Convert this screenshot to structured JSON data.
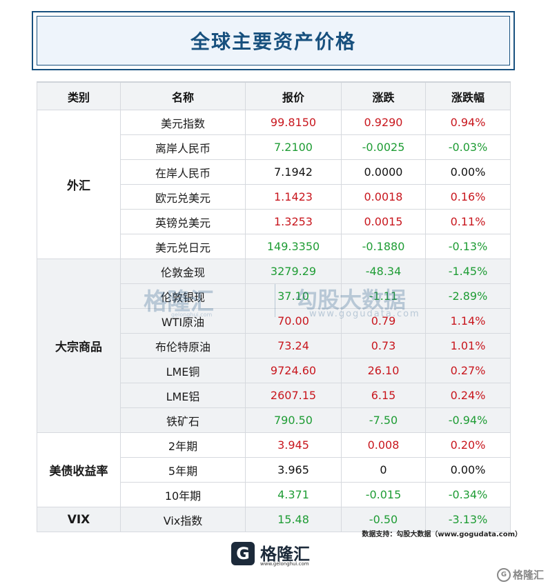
{
  "title": "全球主要资产价格",
  "headers": [
    "类别",
    "名称",
    "报价",
    "涨跌",
    "涨跌幅"
  ],
  "colors": {
    "up": "#c8161d",
    "down": "#1e9c34",
    "flat": "#111111",
    "brand": "#17507e"
  },
  "groups": [
    {
      "category": "外汇",
      "rows": [
        {
          "name": "美元指数",
          "price": "99.8150",
          "change": "0.9290",
          "pct": "0.94%",
          "dir": "up"
        },
        {
          "name": "离岸人民币",
          "price": "7.2100",
          "change": "-0.0025",
          "pct": "-0.03%",
          "dir": "down"
        },
        {
          "name": "在岸人民币",
          "price": "7.1942",
          "change": "0.0000",
          "pct": "0.00%",
          "dir": "flat"
        },
        {
          "name": "欧元兑美元",
          "price": "1.1423",
          "change": "0.0018",
          "pct": "0.16%",
          "dir": "up"
        },
        {
          "name": "英镑兑美元",
          "price": "1.3253",
          "change": "0.0015",
          "pct": "0.11%",
          "dir": "up"
        },
        {
          "name": "美元兑日元",
          "price": "149.3350",
          "change": "-0.1880",
          "pct": "-0.13%",
          "dir": "down"
        }
      ]
    },
    {
      "category": "大宗商品",
      "rows": [
        {
          "name": "伦敦金现",
          "price": "3279.29",
          "change": "-48.34",
          "pct": "-1.45%",
          "dir": "down"
        },
        {
          "name": "伦敦银现",
          "price": "37.10",
          "change": "-1.11",
          "pct": "-2.89%",
          "dir": "down"
        },
        {
          "name": "WTI原油",
          "price": "70.00",
          "change": "0.79",
          "pct": "1.14%",
          "dir": "up"
        },
        {
          "name": "布伦特原油",
          "price": "73.24",
          "change": "0.73",
          "pct": "1.01%",
          "dir": "up"
        },
        {
          "name": "LME铜",
          "price": "9724.60",
          "change": "26.10",
          "pct": "0.27%",
          "dir": "up"
        },
        {
          "name": "LME铝",
          "price": "2607.15",
          "change": "6.15",
          "pct": "0.24%",
          "dir": "up"
        },
        {
          "name": "铁矿石",
          "price": "790.50",
          "change": "-7.50",
          "pct": "-0.94%",
          "dir": "down"
        }
      ]
    },
    {
      "category": "美债收益率",
      "rows": [
        {
          "name": "2年期",
          "price": "3.945",
          "change": "0.008",
          "pct": "0.20%",
          "dir": "up"
        },
        {
          "name": "5年期",
          "price": "3.965",
          "change": "0",
          "pct": "0.00%",
          "dir": "flat"
        },
        {
          "name": "10年期",
          "price": "4.371",
          "change": "-0.015",
          "pct": "-0.34%",
          "dir": "down"
        }
      ]
    },
    {
      "category": "VIX",
      "rows": [
        {
          "name": "Vix指数",
          "price": "15.48",
          "change": "-0.50",
          "pct": "-3.13%",
          "dir": "down"
        }
      ]
    }
  ],
  "watermark": {
    "logo": "格隆汇",
    "sub": "gelonghui.com",
    "cn": "勾股大数据",
    "url": "www.gogudata.com"
  },
  "source": "数据支持：勾股大数据（www.gogudata.com）",
  "footer": {
    "logo_mark": "G",
    "logo_text": "格隆汇",
    "url": "www.gelonghui.com"
  },
  "corner_badge": {
    "icon": "G",
    "text": "格隆汇"
  }
}
